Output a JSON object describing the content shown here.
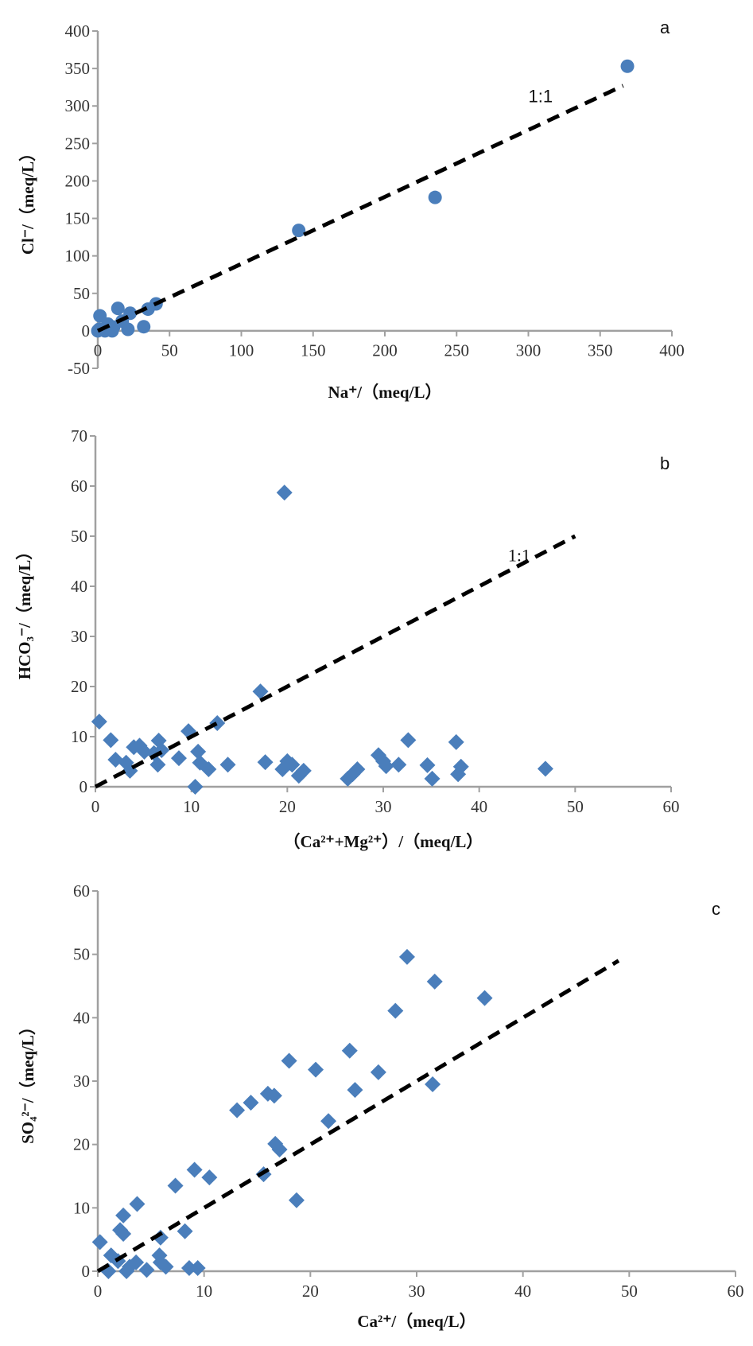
{
  "colors": {
    "marker": "#4A7EBB",
    "axis": "#A0A0A0",
    "ref_line": "#000000"
  },
  "chart_data": [
    {
      "type": "scatter",
      "panel_label": "a",
      "marker": "circle",
      "xlabel": "Na⁺/（meq/L）",
      "ylabel": "Cl⁻/（meq/L）",
      "xlim": [
        0,
        400
      ],
      "ylim": [
        -50,
        400
      ],
      "xticks": [
        0,
        50,
        100,
        150,
        200,
        250,
        300,
        350,
        400
      ],
      "yticks": [
        -50,
        0,
        50,
        100,
        150,
        200,
        250,
        300,
        350,
        400
      ],
      "grid": false,
      "ref_line": {
        "label": "1:1",
        "from": [
          0,
          0
        ],
        "to": [
          366,
          327
        ]
      },
      "points": [
        [
          0,
          0
        ],
        [
          1,
          2
        ],
        [
          1.5,
          20
        ],
        [
          5,
          0
        ],
        [
          7,
          9
        ],
        [
          10,
          0
        ],
        [
          11,
          5
        ],
        [
          14,
          30
        ],
        [
          17,
          13
        ],
        [
          21,
          2
        ],
        [
          22.5,
          23.5
        ],
        [
          32,
          5.5
        ],
        [
          35,
          29
        ],
        [
          40.6,
          36
        ],
        [
          140,
          134
        ],
        [
          235,
          178
        ],
        [
          369,
          353
        ]
      ]
    },
    {
      "type": "scatter",
      "panel_label": "b",
      "marker": "diamond",
      "xlabel": "（Ca²⁺+Mg²⁺）/（meq/L）",
      "ylabel": "HCO₃⁻/（meq/L）",
      "xlim": [
        0,
        60
      ],
      "ylim": [
        0,
        70
      ],
      "xticks": [
        0,
        10,
        20,
        30,
        40,
        50,
        60
      ],
      "yticks": [
        0,
        10,
        20,
        30,
        40,
        50,
        60,
        70
      ],
      "grid": false,
      "ref_line": {
        "label": "1:1",
        "from": [
          0,
          0
        ],
        "to": [
          50,
          50
        ]
      },
      "points": [
        [
          0.4,
          13.0
        ],
        [
          1.6,
          9.3
        ],
        [
          2.1,
          5.4
        ],
        [
          3.2,
          4.8
        ],
        [
          3.6,
          3.2
        ],
        [
          4.0,
          7.9
        ],
        [
          4.6,
          8.2
        ],
        [
          5.1,
          7.0
        ],
        [
          6.1,
          6.7
        ],
        [
          6.6,
          9.2
        ],
        [
          6.5,
          4.4
        ],
        [
          6.9,
          7.3
        ],
        [
          8.7,
          5.7
        ],
        [
          9.7,
          11.1
        ],
        [
          10.4,
          0
        ],
        [
          10.7,
          7.0
        ],
        [
          10.9,
          4.8
        ],
        [
          11.8,
          3.5
        ],
        [
          12.7,
          12.7
        ],
        [
          13.8,
          4.4
        ],
        [
          17.2,
          19.0
        ],
        [
          17.7,
          4.9
        ],
        [
          19.5,
          3.5
        ],
        [
          19.7,
          58.7
        ],
        [
          20.0,
          5.1
        ],
        [
          20.5,
          4.4
        ],
        [
          21.2,
          2.2
        ],
        [
          21.7,
          3.2
        ],
        [
          26.3,
          1.6
        ],
        [
          26.8,
          2.5
        ],
        [
          27.3,
          3.5
        ],
        [
          29.5,
          6.3
        ],
        [
          30.0,
          5.1
        ],
        [
          30.3,
          4.1
        ],
        [
          31.6,
          4.4
        ],
        [
          32.6,
          9.3
        ],
        [
          34.6,
          4.3
        ],
        [
          35.1,
          1.6
        ],
        [
          37.6,
          8.9
        ],
        [
          37.8,
          2.5
        ],
        [
          38.1,
          4.0
        ],
        [
          46.9,
          3.6
        ]
      ]
    },
    {
      "type": "scatter",
      "panel_label": "c",
      "marker": "diamond",
      "xlabel": "Ca²⁺/（meq/L）",
      "ylabel": "SO₄²⁻/（meq/L）",
      "xlim": [
        0,
        60
      ],
      "ylim": [
        0,
        60
      ],
      "xticks": [
        0,
        10,
        20,
        30,
        40,
        50,
        60
      ],
      "yticks": [
        0,
        10,
        20,
        30,
        40,
        50,
        60
      ],
      "grid": false,
      "ref_line": {
        "label": "",
        "from": [
          0,
          0
        ],
        "to": [
          49,
          49
        ]
      },
      "points": [
        [
          0.2,
          4.6
        ],
        [
          1.0,
          0
        ],
        [
          1.25,
          2.5
        ],
        [
          1.9,
          1.6
        ],
        [
          2.1,
          6.5
        ],
        [
          2.4,
          5.9
        ],
        [
          2.4,
          8.8
        ],
        [
          2.7,
          0
        ],
        [
          3.0,
          0.7
        ],
        [
          3.6,
          1.4
        ],
        [
          3.7,
          10.6
        ],
        [
          4.6,
          0.2
        ],
        [
          5.8,
          2.5
        ],
        [
          5.9,
          1.4
        ],
        [
          5.9,
          5.3
        ],
        [
          6.4,
          0.7
        ],
        [
          7.3,
          13.5
        ],
        [
          8.2,
          6.3
        ],
        [
          8.6,
          0.5
        ],
        [
          9.1,
          16.0
        ],
        [
          9.4,
          0.5
        ],
        [
          10.5,
          14.8
        ],
        [
          13.1,
          25.4
        ],
        [
          14.4,
          26.6
        ],
        [
          15.6,
          15.3
        ],
        [
          16.0,
          28.0
        ],
        [
          16.6,
          27.7
        ],
        [
          16.7,
          20.1
        ],
        [
          17.1,
          19.2
        ],
        [
          18.0,
          33.2
        ],
        [
          18.7,
          11.2
        ],
        [
          20.5,
          31.8
        ],
        [
          21.7,
          23.7
        ],
        [
          23.7,
          34.8
        ],
        [
          24.2,
          28.6
        ],
        [
          26.4,
          31.4
        ],
        [
          28.0,
          41.1
        ],
        [
          29.1,
          49.6
        ],
        [
          31.5,
          29.5
        ],
        [
          31.7,
          45.7
        ],
        [
          36.4,
          43.1
        ]
      ]
    }
  ]
}
